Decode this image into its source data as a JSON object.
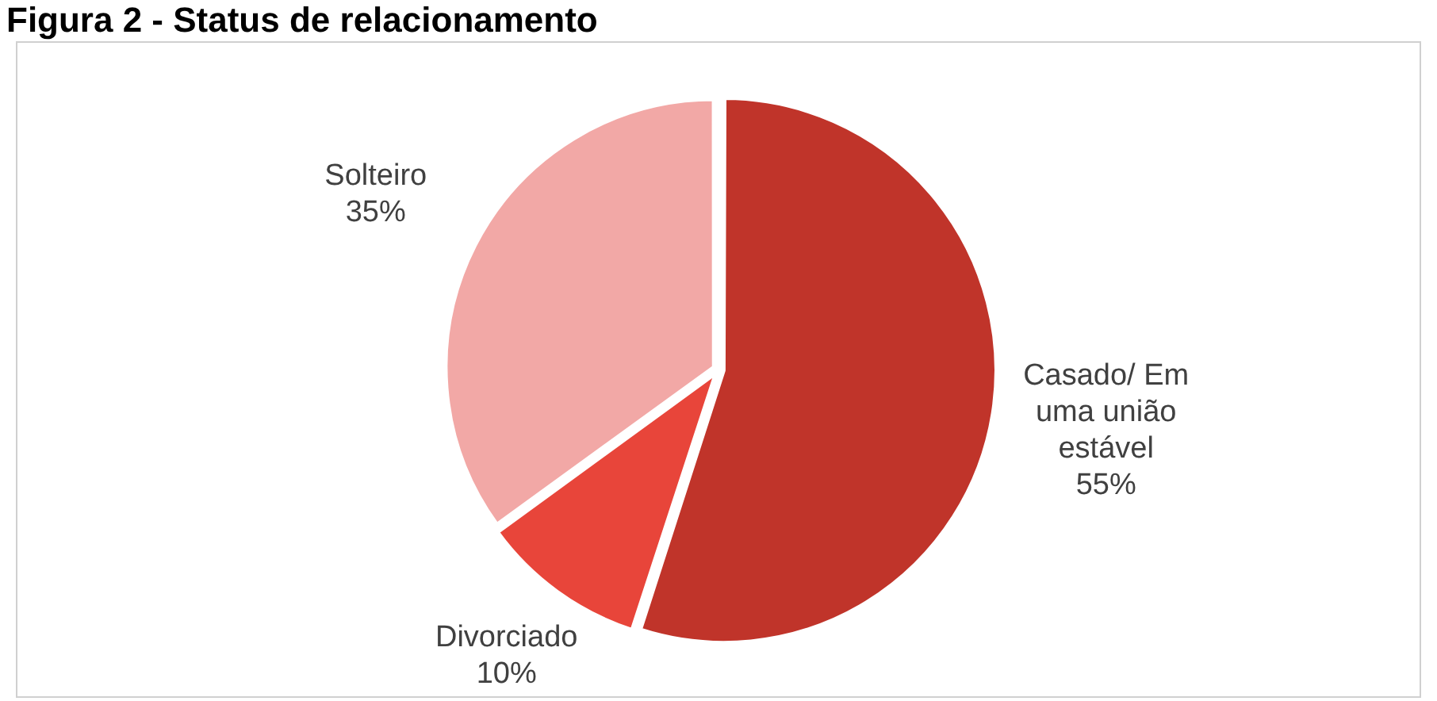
{
  "chart_data": {
    "type": "pie",
    "title": "Figura 2 - Status de relacionamento",
    "categories": [
      "Casado/ Em uma união estável",
      "Divorciado",
      "Solteiro"
    ],
    "values": [
      55,
      10,
      35
    ],
    "colors": [
      "#c0342a",
      "#e8453a",
      "#f2a8a6"
    ],
    "value_labels": [
      "55%",
      "10%",
      "35%"
    ],
    "legend": false
  }
}
